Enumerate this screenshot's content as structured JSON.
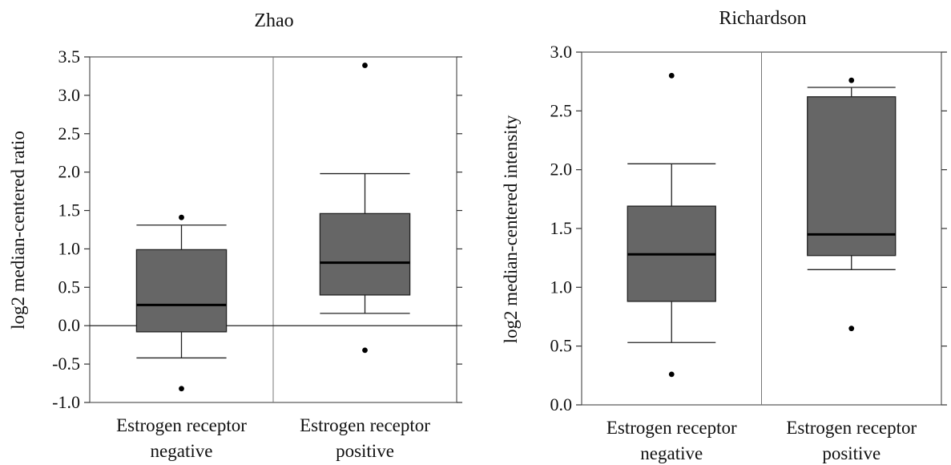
{
  "chart_data": [
    {
      "type": "box",
      "title": "Zhao",
      "ylabel": "log2 median-centered ratio",
      "ylim": [
        -1.0,
        3.5
      ],
      "yticks": [
        -1.0,
        -0.5,
        0.0,
        0.5,
        1.0,
        1.5,
        2.0,
        2.5,
        3.0,
        3.5
      ],
      "ytick_labels": [
        "-1.0",
        "-0.5",
        "0.0",
        "0.5",
        "1.0",
        "1.5",
        "2.0",
        "2.5",
        "3.0",
        "3.5"
      ],
      "zero_line": true,
      "categories": [
        {
          "line1": "Estrogen receptor",
          "line2": "negative"
        },
        {
          "line1": "Estrogen receptor",
          "line2": "positive"
        }
      ],
      "boxes": [
        {
          "whisker_low": -0.42,
          "q1": -0.08,
          "median": 0.27,
          "q3": 0.99,
          "whisker_high": 1.31,
          "outliers": [
            1.41,
            -0.82
          ]
        },
        {
          "whisker_low": 0.16,
          "q1": 0.4,
          "median": 0.82,
          "q3": 1.46,
          "whisker_high": 1.98,
          "outliers": [
            3.39,
            -0.32
          ]
        }
      ],
      "box_color": "#666666"
    },
    {
      "type": "box",
      "title": "Richardson",
      "ylabel": "log2 median-centered intensity",
      "ylim": [
        0.0,
        3.0
      ],
      "yticks": [
        0.0,
        0.5,
        1.0,
        1.5,
        2.0,
        2.5,
        3.0
      ],
      "ytick_labels": [
        "0.0",
        "0.5",
        "1.0",
        "1.5",
        "2.0",
        "2.5",
        "3.0"
      ],
      "zero_line": false,
      "categories": [
        {
          "line1": "Estrogen receptor",
          "line2": "negative"
        },
        {
          "line1": "Estrogen receptor",
          "line2": "positive"
        }
      ],
      "boxes": [
        {
          "whisker_low": 0.53,
          "q1": 0.88,
          "median": 1.28,
          "q3": 1.69,
          "whisker_high": 2.05,
          "outliers": [
            2.8,
            0.26
          ]
        },
        {
          "whisker_low": 1.15,
          "q1": 1.27,
          "median": 1.45,
          "q3": 2.62,
          "whisker_high": 2.7,
          "outliers": [
            2.76,
            0.65
          ]
        }
      ],
      "box_color": "#666666"
    }
  ]
}
